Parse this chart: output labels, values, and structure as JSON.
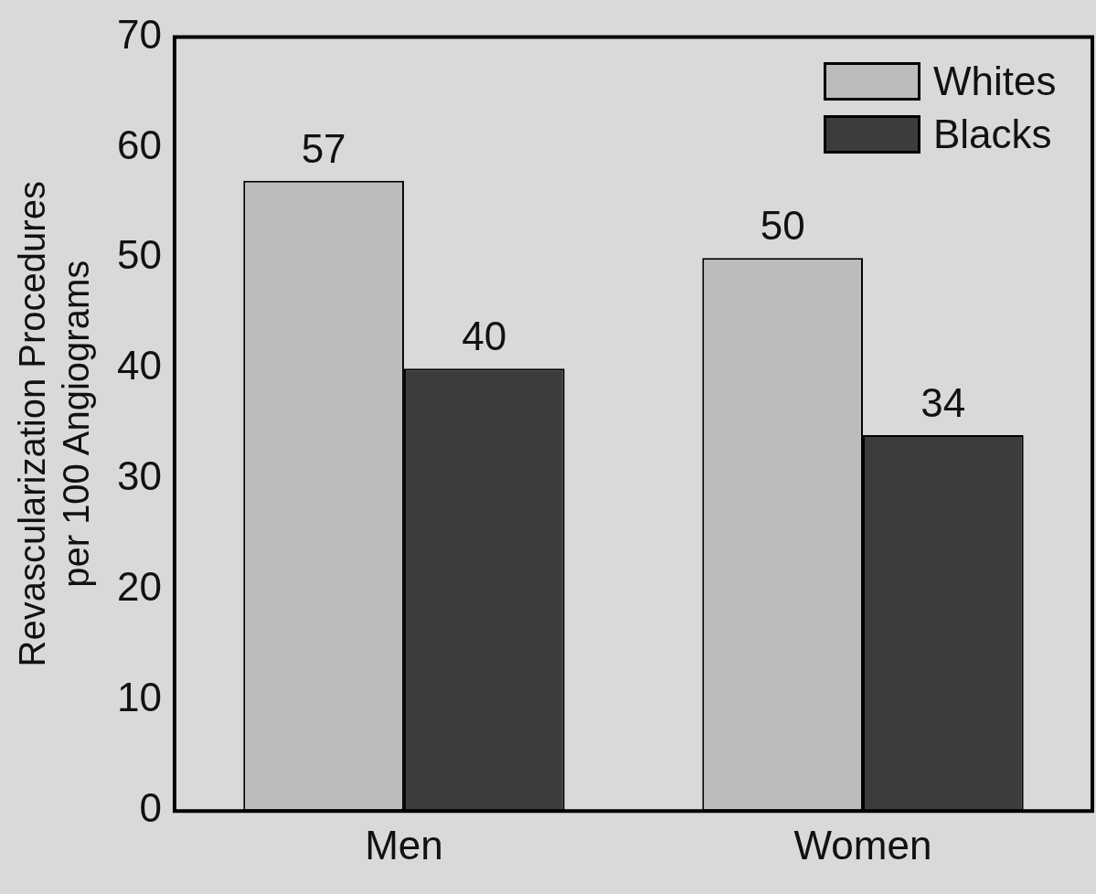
{
  "chart_data": {
    "type": "bar",
    "ylabel": "Revascularization Procedures\nper 100 Angiograms",
    "categories": [
      "Men",
      "Women"
    ],
    "series": [
      {
        "name": "Whites",
        "color": "#bcbcbc",
        "values": [
          57,
          50
        ]
      },
      {
        "name": "Blacks",
        "color": "#3c3c3c",
        "values": [
          40,
          34
        ]
      }
    ],
    "ylim": [
      0,
      70
    ],
    "yticks": [
      0,
      10,
      20,
      30,
      40,
      50,
      60,
      70
    ],
    "grid": false,
    "legend": "top right",
    "data_labels": true
  }
}
